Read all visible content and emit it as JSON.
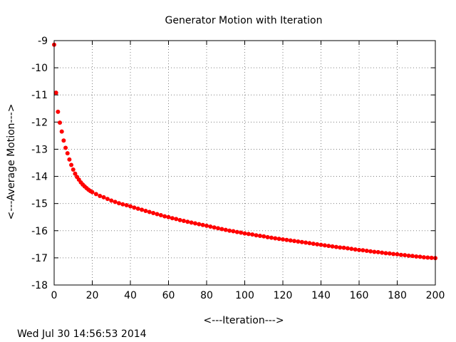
{
  "chart_data": {
    "type": "scatter",
    "title": "Generator Motion with Iteration",
    "xlabel": "<---Iteration--->",
    "ylabel": "<---Average Motion--->",
    "xlim": [
      0,
      200
    ],
    "ylim": [
      -18,
      -9
    ],
    "xticks": [
      0,
      20,
      40,
      60,
      80,
      100,
      120,
      140,
      160,
      180,
      200
    ],
    "yticks": [
      -18,
      -17,
      -16,
      -15,
      -14,
      -13,
      -12,
      -11,
      -10,
      -9
    ],
    "grid": true,
    "legend": "none",
    "marker_color": "#ff0000",
    "series": [
      {
        "x": [
          0,
          1,
          2,
          3,
          4,
          5,
          6,
          7,
          8,
          9,
          10,
          11,
          12,
          13,
          14,
          15,
          16,
          17,
          18,
          19,
          20,
          22,
          24,
          26,
          28,
          30,
          32,
          34,
          36,
          38,
          40,
          42,
          44,
          46,
          48,
          50,
          52,
          54,
          56,
          58,
          60,
          62,
          64,
          66,
          68,
          70,
          72,
          74,
          76,
          78,
          80,
          82,
          84,
          86,
          88,
          90,
          92,
          94,
          96,
          98,
          100,
          102,
          104,
          106,
          108,
          110,
          112,
          114,
          116,
          118,
          120,
          122,
          124,
          126,
          128,
          130,
          132,
          134,
          136,
          138,
          140,
          142,
          144,
          146,
          148,
          150,
          152,
          154,
          156,
          158,
          160,
          162,
          164,
          166,
          168,
          170,
          172,
          174,
          176,
          178,
          180,
          182,
          184,
          186,
          188,
          190,
          192,
          194,
          196,
          198,
          200
        ],
        "y": [
          -9.15,
          -10.92,
          -11.62,
          -12.02,
          -12.35,
          -12.68,
          -12.95,
          -13.15,
          -13.38,
          -13.58,
          -13.75,
          -13.9,
          -14.02,
          -14.12,
          -14.22,
          -14.3,
          -14.37,
          -14.43,
          -14.49,
          -14.54,
          -14.58,
          -14.65,
          -14.72,
          -14.77,
          -14.83,
          -14.89,
          -14.94,
          -14.99,
          -15.03,
          -15.06,
          -15.1,
          -15.15,
          -15.19,
          -15.23,
          -15.27,
          -15.31,
          -15.35,
          -15.39,
          -15.43,
          -15.47,
          -15.5,
          -15.54,
          -15.57,
          -15.61,
          -15.64,
          -15.67,
          -15.7,
          -15.73,
          -15.76,
          -15.79,
          -15.82,
          -15.85,
          -15.88,
          -15.91,
          -15.94,
          -15.97,
          -16.0,
          -16.02,
          -16.05,
          -16.07,
          -16.1,
          -16.12,
          -16.14,
          -16.17,
          -16.19,
          -16.21,
          -16.24,
          -16.26,
          -16.28,
          -16.3,
          -16.32,
          -16.34,
          -16.36,
          -16.38,
          -16.4,
          -16.42,
          -16.44,
          -16.46,
          -16.48,
          -16.5,
          -16.52,
          -16.54,
          -16.56,
          -16.58,
          -16.6,
          -16.62,
          -16.63,
          -16.65,
          -16.67,
          -16.69,
          -16.71,
          -16.72,
          -16.74,
          -16.76,
          -16.78,
          -16.79,
          -16.81,
          -16.83,
          -16.84,
          -16.86,
          -16.87,
          -16.89,
          -16.9,
          -16.92,
          -16.93,
          -16.95,
          -16.96,
          -16.98,
          -16.99,
          -17.0,
          -17.01
        ]
      }
    ]
  },
  "footer": {
    "timestamp": "Wed Jul 30 14:56:53 2014"
  }
}
